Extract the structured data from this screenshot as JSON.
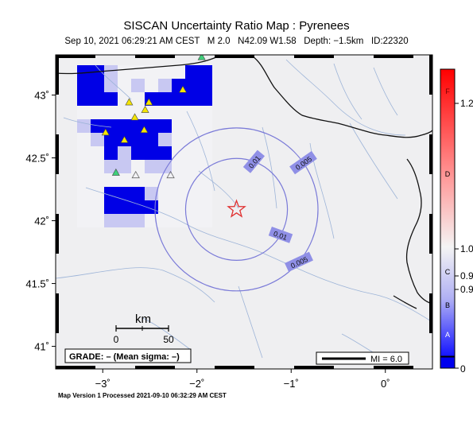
{
  "title": "SISCAN Uncertainty Ratio Map : Pyrenees",
  "subtitle": "Sep 10, 2021 06:29:21 AM CEST   M 2.0   N42.09 W1.58   Depth: −1.5km   ID:22320",
  "footer": "Map Version 1 Processed 2021-09-10 06:32:29 AM CEST",
  "map": {
    "lon_range": [
      -3.5,
      0.5
    ],
    "lat_range": [
      40.82,
      43.32
    ],
    "lon_ticks": [
      {
        "value": -3,
        "label": "−3˚"
      },
      {
        "value": -2,
        "label": "−2˚"
      },
      {
        "value": -1,
        "label": "−1˚"
      },
      {
        "value": 0,
        "label": "0˚"
      }
    ],
    "lat_ticks": [
      {
        "value": 43,
        "label": "43˚"
      },
      {
        "value": 42.5,
        "label": "42.5˚"
      },
      {
        "value": 42,
        "label": "42˚"
      },
      {
        "value": 41.5,
        "label": "41.5˚"
      },
      {
        "value": 41,
        "label": "41˚"
      }
    ],
    "epicenter": {
      "lon": -1.58,
      "lat": 42.09,
      "color": "#e03030"
    },
    "contours": [
      {
        "label": "0.01",
        "radius_km": 45
      },
      {
        "label": "0.005",
        "radius_km": 72
      }
    ],
    "contour_color": "#7a7ad8",
    "scale_bar": {
      "title": "km",
      "tick_labels": [
        "0",
        "50"
      ]
    },
    "grade_box": "GRADE: – (Mean sigma: –)",
    "legend_line": "MI = 6.0",
    "stations_filled": [
      [
        -2.97,
        42.7
      ],
      [
        -2.77,
        42.64
      ],
      [
        -2.66,
        42.82
      ],
      [
        -2.56,
        42.72
      ],
      [
        -2.72,
        42.94
      ],
      [
        -2.51,
        42.94
      ],
      [
        -2.15,
        43.04
      ],
      [
        -2.86,
        42.38
      ],
      [
        -2.55,
        42.88
      ],
      [
        -1.95,
        43.3
      ]
    ],
    "stations_open": [
      [
        -2.65,
        42.36
      ],
      [
        -2.28,
        42.36
      ]
    ]
  },
  "colorbar": {
    "grades": [
      "F",
      "D",
      "C",
      "B",
      "A"
    ],
    "values": [
      "1.2",
      "1.0",
      "0.9",
      "0.9",
      "0"
    ]
  }
}
